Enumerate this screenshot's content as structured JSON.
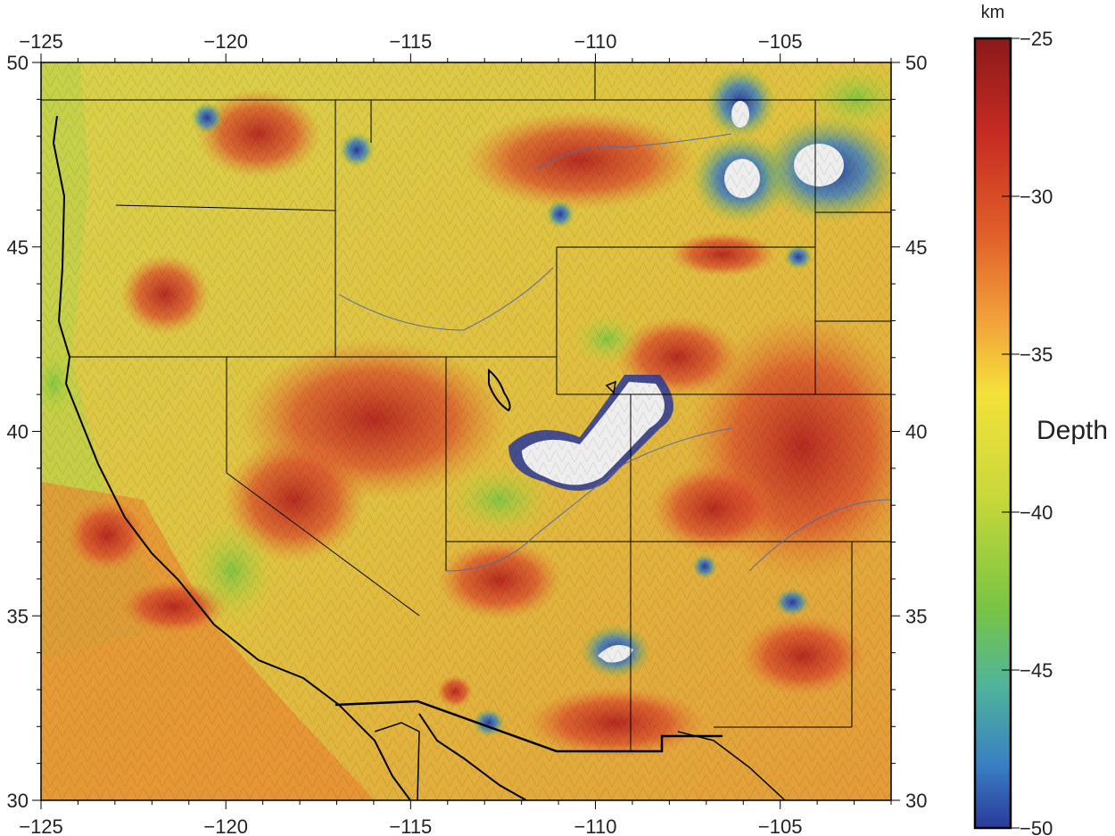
{
  "map": {
    "lon_ticks": [
      -125,
      -120,
      -115,
      -110,
      -105
    ],
    "lat_ticks": [
      50,
      45,
      40,
      35,
      30
    ],
    "lon_labels": [
      "−125",
      "−120",
      "−115",
      "−110",
      "−105"
    ],
    "lat_labels": [
      "50",
      "45",
      "40",
      "35",
      "30"
    ],
    "extent": {
      "lon_min": -125,
      "lon_max": -102,
      "lat_min": 30,
      "lat_max": 50
    }
  },
  "colorbar": {
    "unit": "km",
    "label": "Depth",
    "ticks": [
      -25,
      -30,
      -35,
      -40,
      -45,
      -50
    ],
    "tick_labels": [
      "−25",
      "−30",
      "−35",
      "−40",
      "−45",
      "−50"
    ],
    "colors": [
      "#8b1a1a",
      "#c62b22",
      "#e0602a",
      "#f2a33a",
      "#f4e13a",
      "#c8d83a",
      "#7ac443",
      "#4fb49a",
      "#3a7fc4",
      "#2a3a9a"
    ]
  }
}
